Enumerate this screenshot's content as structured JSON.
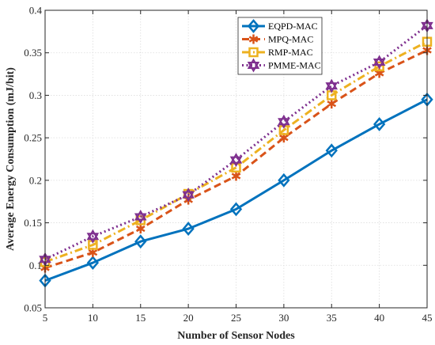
{
  "chart_data": {
    "type": "line",
    "title": "",
    "xlabel": "Number of Sensor Nodes",
    "ylabel": "Average Energy Consumption (mJ/bit)",
    "x": [
      5,
      10,
      15,
      20,
      25,
      30,
      35,
      40,
      45
    ],
    "xlim": [
      5,
      45
    ],
    "ylim": [
      0.05,
      0.4
    ],
    "xticks": [
      "5",
      "10",
      "15",
      "20",
      "25",
      "30",
      "35",
      "40",
      "45"
    ],
    "yticks": [
      "0.05",
      "0.1",
      "0.15",
      "0.2",
      "0.25",
      "0.3",
      "0.35",
      "0.4"
    ],
    "grid": true,
    "legend_position": "top-right",
    "series": [
      {
        "name": "EQPD-MAC",
        "color": "#0072BD",
        "dash": "solid",
        "marker": "diamond",
        "values": [
          0.082,
          0.103,
          0.128,
          0.143,
          0.166,
          0.2,
          0.235,
          0.266,
          0.295
        ]
      },
      {
        "name": "MPQ-MAC",
        "color": "#D95319",
        "dash": "dashed",
        "marker": "asterisk",
        "values": [
          0.097,
          0.115,
          0.143,
          0.177,
          0.205,
          0.25,
          0.29,
          0.326,
          0.353
        ]
      },
      {
        "name": "RMP-MAC",
        "color": "#EDB120",
        "dash": "dashdot",
        "marker": "square",
        "values": [
          0.104,
          0.124,
          0.153,
          0.184,
          0.215,
          0.259,
          0.3,
          0.334,
          0.363
        ]
      },
      {
        "name": "PMME-MAC",
        "color": "#7E2F8E",
        "dash": "dotted",
        "marker": "hexagram",
        "values": [
          0.107,
          0.134,
          0.157,
          0.183,
          0.224,
          0.269,
          0.311,
          0.339,
          0.382
        ]
      }
    ]
  }
}
